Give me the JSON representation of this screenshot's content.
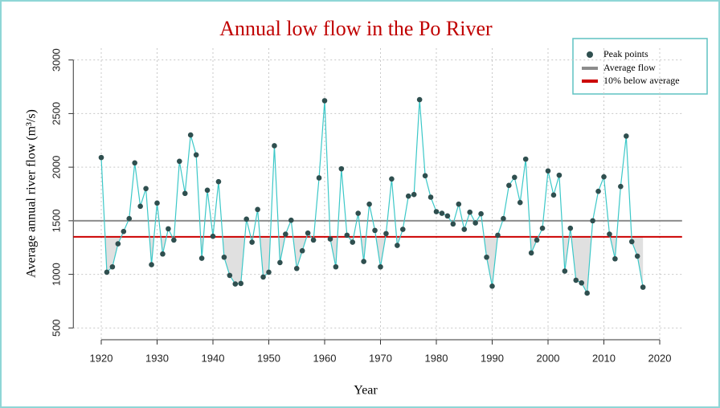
{
  "chart_data": {
    "type": "line",
    "title": "Annual low flow in the Po River",
    "x_label": "Year",
    "y_label": "Average annual river flow (m³/s)",
    "x": [
      1920,
      1921,
      1922,
      1923,
      1924,
      1925,
      1926,
      1927,
      1928,
      1929,
      1930,
      1931,
      1932,
      1933,
      1934,
      1935,
      1936,
      1937,
      1938,
      1939,
      1940,
      1941,
      1942,
      1943,
      1944,
      1945,
      1946,
      1947,
      1948,
      1949,
      1950,
      1951,
      1952,
      1953,
      1954,
      1955,
      1956,
      1957,
      1958,
      1959,
      1960,
      1961,
      1962,
      1963,
      1964,
      1965,
      1966,
      1967,
      1968,
      1969,
      1970,
      1971,
      1972,
      1973,
      1974,
      1975,
      1976,
      1977,
      1978,
      1979,
      1980,
      1981,
      1982,
      1983,
      1984,
      1985,
      1986,
      1987,
      1988,
      1989,
      1990,
      1991,
      1992,
      1993,
      1994,
      1995,
      1996,
      1997,
      1998,
      1999,
      2000,
      2001,
      2002,
      2003,
      2004,
      2005,
      2006,
      2007,
      2008,
      2009,
      2010,
      2011,
      2012,
      2013,
      2014,
      2015,
      2016,
      2017
    ],
    "series": [
      {
        "name": "Peak points",
        "color": "#2f4f4f",
        "line_color": "#3cc8c8",
        "values": [
          2090,
          1020,
          1070,
          1285,
          1400,
          1520,
          2040,
          1635,
          1800,
          1090,
          1665,
          1190,
          1425,
          1320,
          2055,
          1755,
          2300,
          2115,
          1150,
          1785,
          1355,
          1865,
          1160,
          990,
          910,
          915,
          1515,
          1300,
          1605,
          975,
          1020,
          2200,
          1110,
          1375,
          1505,
          1055,
          1220,
          1385,
          1320,
          1900,
          2620,
          1330,
          1070,
          1985,
          1365,
          1300,
          1570,
          1120,
          1655,
          1410,
          1070,
          1380,
          1890,
          1270,
          1420,
          1730,
          1745,
          2630,
          1920,
          1720,
          1585,
          1570,
          1545,
          1470,
          1655,
          1420,
          1580,
          1480,
          1565,
          1160,
          890,
          1365,
          1520,
          1830,
          1905,
          1670,
          2075,
          1200,
          1320,
          1430,
          1965,
          1740,
          1925,
          1030,
          1430,
          945,
          920,
          825,
          1500,
          1775,
          1910,
          1375,
          1145,
          1820,
          2290,
          1305,
          1170,
          880
        ]
      }
    ],
    "reference_lines": [
      {
        "name": "Average flow",
        "value": 1500,
        "color": "#8c8c8c"
      },
      {
        "name": "10% below average",
        "value": 1350,
        "color": "#cc0000"
      }
    ],
    "shade_color": "#e0e0e0",
    "xlim": [
      1915,
      2024
    ],
    "ylim": [
      390,
      3110
    ],
    "xticks": [
      1920,
      1930,
      1940,
      1950,
      1960,
      1970,
      1980,
      1990,
      2000,
      2010,
      2020
    ],
    "yticks": [
      500,
      1000,
      1500,
      2000,
      2500,
      3000
    ],
    "grid": true,
    "legend": "top-right"
  }
}
